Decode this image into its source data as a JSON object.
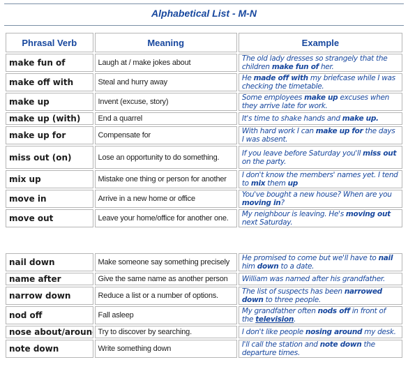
{
  "page": {
    "title": "Alphabetical List  - M-N",
    "accent_color": "#17479e"
  },
  "table": {
    "headers": {
      "verb": "Phrasal Verb",
      "meaning": "Meaning",
      "example": "Example"
    },
    "group1": [
      {
        "verb": "make fun of",
        "meaning": "Laugh at / make jokes about",
        "example": [
          {
            "t": "The old lady dresses so strangely that the children "
          },
          {
            "t": "make fun of",
            "b": true
          },
          {
            "t": " her."
          }
        ]
      },
      {
        "verb": "make off with",
        "meaning": "Steal and hurry away",
        "example": [
          {
            "t": "He "
          },
          {
            "t": "made off with",
            "b": true
          },
          {
            "t": " my briefcase while I was checking the timetable."
          }
        ]
      },
      {
        "verb": "make up",
        "meaning": "Invent (excuse, story)",
        "example": [
          {
            "t": "Some employees "
          },
          {
            "t": "make up",
            "b": true
          },
          {
            "t": " excuses when they arrive late for work."
          }
        ]
      },
      {
        "verb": "make up (with)",
        "meaning": "End a quarrel",
        "example": [
          {
            "t": "It's time to shake hands and "
          },
          {
            "t": "make up.",
            "b": true
          }
        ]
      },
      {
        "verb": "make up for",
        "meaning": "Compensate for",
        "example": [
          {
            "t": "With hard work I can "
          },
          {
            "t": "make up for",
            "b": true
          },
          {
            "t": " the days I was absent."
          }
        ]
      },
      {
        "verb": "miss out (on)",
        "meaning": "Lose an opportunity to do something.",
        "example": [
          {
            "t": "If you leave before Saturday you'll "
          },
          {
            "t": "miss out",
            "b": true
          },
          {
            "t": " on the party."
          }
        ]
      },
      {
        "verb": "mix up",
        "meaning": "Mistake one thing or person for another",
        "example": [
          {
            "t": "I don't know the members' names yet. I tend to "
          },
          {
            "t": "mix",
            "b": true
          },
          {
            "t": " them "
          },
          {
            "t": "up",
            "b": true
          }
        ]
      },
      {
        "verb": "move in",
        "meaning": "Arrive in a new home or office",
        "example": [
          {
            "t": "You've bought a new house?  When are you "
          },
          {
            "t": "moving in",
            "b": true
          },
          {
            "t": "?"
          }
        ]
      },
      {
        "verb": "move out",
        "meaning": "Leave your home/office for another one.",
        "example": [
          {
            "t": "My neighbour is leaving.  He's "
          },
          {
            "t": "moving out",
            "b": true
          },
          {
            "t": " next Saturday."
          }
        ]
      }
    ],
    "group2": [
      {
        "verb": "nail down",
        "meaning": "Make someone say something precisely",
        "example": [
          {
            "t": "He promised to come but we'll have to "
          },
          {
            "t": "nail",
            "b": true
          },
          {
            "t": " him "
          },
          {
            "t": "down",
            "b": true
          },
          {
            "t": " to a date."
          }
        ]
      },
      {
        "verb": "name after",
        "meaning": "Give the same name as another person",
        "example": [
          {
            "t": "William was named after his grandfather."
          }
        ]
      },
      {
        "verb": "narrow down",
        "meaning": "Reduce a list or a number of options.",
        "example": [
          {
            "t": "The list of suspects has been "
          },
          {
            "t": "narrowed down",
            "b": true
          },
          {
            "t": " to three people."
          }
        ]
      },
      {
        "verb": "nod off",
        "meaning": "Fall asleep",
        "example": [
          {
            "t": "My grandfather often "
          },
          {
            "t": "nods off",
            "b": true
          },
          {
            "t": " in front of the "
          },
          {
            "t": "television",
            "b": true,
            "u": true
          },
          {
            "t": "."
          }
        ]
      },
      {
        "verb": "nose about/around",
        "meaning": "Try to discover by searching.",
        "example": [
          {
            "t": "I don't like people "
          },
          {
            "t": "nosing around",
            "b": true
          },
          {
            "t": " my desk."
          }
        ]
      },
      {
        "verb": "note down",
        "meaning": "Write something down",
        "example": [
          {
            "t": "I'll call the station and "
          },
          {
            "t": "note down",
            "b": true
          },
          {
            "t": " the departure times."
          }
        ]
      }
    ]
  }
}
